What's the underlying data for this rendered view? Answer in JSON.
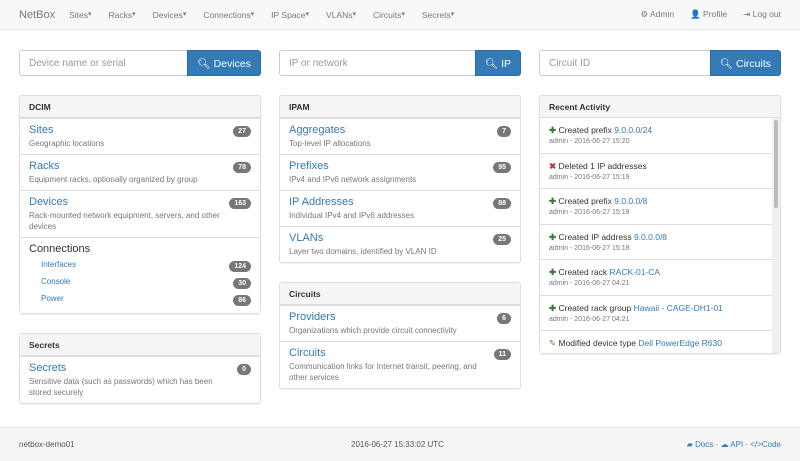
{
  "nav": {
    "brand": "NetBox",
    "menus": [
      "Sites",
      "Racks",
      "Devices",
      "Connections",
      "IP Space",
      "VLANs",
      "Circuits",
      "Secrets"
    ],
    "admin": "Admin",
    "profile": "Profile",
    "logout": "Log out"
  },
  "search": [
    {
      "placeholder": "Device name or serial",
      "button": "Devices"
    },
    {
      "placeholder": "IP or network",
      "button": "IP"
    },
    {
      "placeholder": "Circuit ID",
      "button": "Circuits"
    }
  ],
  "dcim": {
    "heading": "DCIM",
    "items": [
      {
        "title": "Sites",
        "desc": "Geographic locations",
        "count": "27"
      },
      {
        "title": "Racks",
        "desc": "Equipment racks, optionally organized by group",
        "count": "78"
      },
      {
        "title": "Devices",
        "desc": "Rack-mounted network equipment, servers, and other devices",
        "count": "163"
      }
    ],
    "connections": {
      "title": "Connections",
      "items": [
        {
          "label": "Interfaces",
          "count": "124"
        },
        {
          "label": "Console",
          "count": "30"
        },
        {
          "label": "Power",
          "count": "86"
        }
      ]
    }
  },
  "secrets": {
    "heading": "Secrets",
    "items": [
      {
        "title": "Secrets",
        "desc": "Sensitive data (such as passwords) which has been stored securely",
        "count": "0"
      }
    ]
  },
  "ipam": {
    "heading": "IPAM",
    "items": [
      {
        "title": "Aggregates",
        "desc": "Top-level IP allocations",
        "count": "7"
      },
      {
        "title": "Prefixes",
        "desc": "IPv4 and IPv6 network assignments",
        "count": "95"
      },
      {
        "title": "IP Addresses",
        "desc": "Individual IPv4 and IPv6 addresses",
        "count": "88"
      },
      {
        "title": "VLANs",
        "desc": "Layer two domains, identified by VLAN ID",
        "count": "25"
      }
    ]
  },
  "circuits": {
    "heading": "Circuits",
    "items": [
      {
        "title": "Providers",
        "desc": "Organizations which provide circuit connectivity",
        "count": "6"
      },
      {
        "title": "Circuits",
        "desc": "Communication links for Internet transit, peering, and other services",
        "count": "11"
      }
    ]
  },
  "activity": {
    "heading": "Recent Activity",
    "items": [
      {
        "icon": "plus",
        "text": "Created prefix",
        "link": "9.0.0.0/24",
        "meta": "admin - 2016-06-27 15:20"
      },
      {
        "icon": "remove",
        "text": "Deleted 1 IP addresses",
        "link": "",
        "meta": "admin - 2016-06-27 15:19"
      },
      {
        "icon": "plus",
        "text": "Created prefix",
        "link": "9.0.0.0/8",
        "meta": "admin - 2016-06-27 15:19"
      },
      {
        "icon": "plus",
        "text": "Created IP address",
        "link": "9.0.0.0/8",
        "meta": "admin - 2016-06-27 15:18"
      },
      {
        "icon": "plus",
        "text": "Created rack",
        "link": "RACK-01-CA",
        "meta": "admin - 2016-06-27 04:21"
      },
      {
        "icon": "plus",
        "text": "Created rack group",
        "link": "Hawaii - CAGE-DH1-01",
        "meta": "admin - 2016-06-27 04:21"
      },
      {
        "icon": "pencil",
        "text": "Modified device type",
        "link": "Dell PowerEdge R630",
        "meta": ""
      }
    ]
  },
  "footer": {
    "host": "netbox-demo01",
    "time": "2016-06-27 15:33:02 UTC",
    "docs": "Docs",
    "api": "API",
    "code": "Code"
  },
  "colors": {
    "primary": "#337ab7",
    "badge": "#777777",
    "created": "#3c763d",
    "deleted": "#a94442"
  }
}
